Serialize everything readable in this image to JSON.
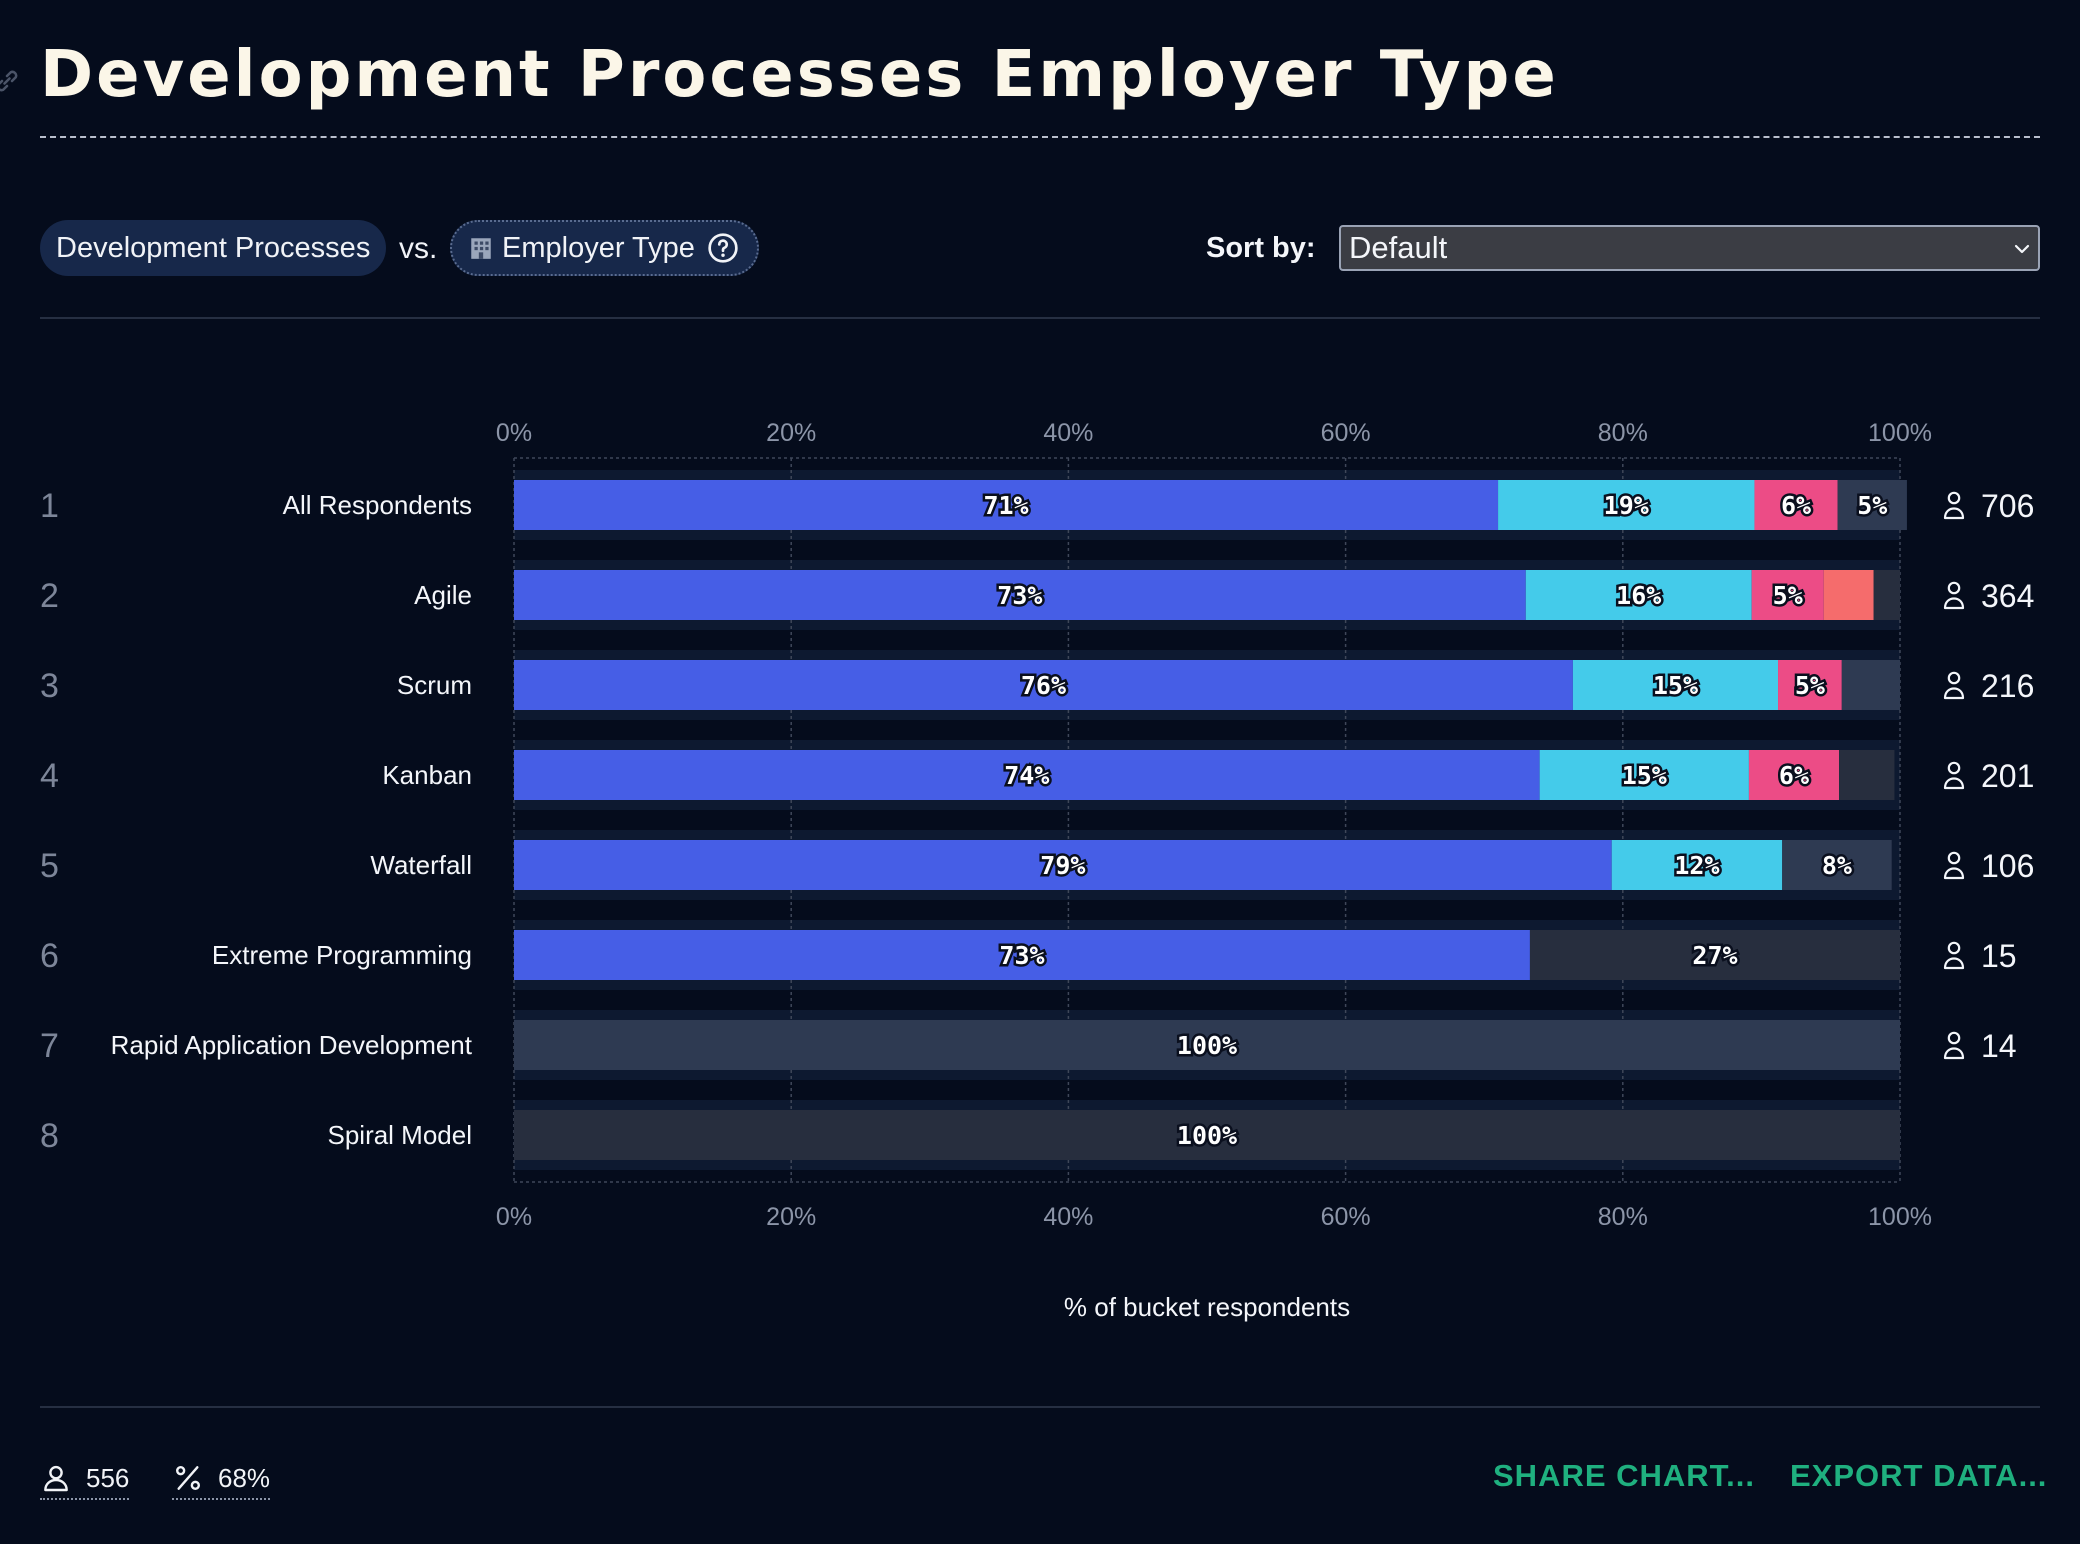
{
  "title": "Development Processes Employer Type",
  "selector": {
    "left": "Development Processes",
    "vs": "vs.",
    "right": "Employer Type",
    "right_icon": "office-building-icon",
    "help_icon": "question-circle-icon"
  },
  "sort": {
    "label": "Sort by:",
    "value": "Default"
  },
  "colors": {
    "blue": "#465ee6",
    "cyan": "#44cbea",
    "pink": "#ec4c86",
    "coral": "#f56c6c",
    "remainder": "#272e3e",
    "remainder_light": "#2e3a52",
    "band": "#0d1930",
    "accent": "#1fb07f"
  },
  "chart_data": {
    "type": "bar",
    "orientation": "horizontal",
    "stacked": true,
    "xlabel": "% of bucket respondents",
    "xlim": [
      0,
      100
    ],
    "xticks": [
      "0%",
      "20%",
      "40%",
      "60%",
      "80%",
      "100%"
    ],
    "grid": true,
    "rows": [
      {
        "rank": "1",
        "label": "All Respondents",
        "count": "706",
        "segments": [
          {
            "value": 71,
            "label": "71%",
            "color": "blue"
          },
          {
            "value": 18.5,
            "label": "19%",
            "color": "cyan"
          },
          {
            "value": 6,
            "label": "6%",
            "color": "pink"
          },
          {
            "value": 5,
            "label": "5%",
            "color": "remainder_light"
          }
        ]
      },
      {
        "rank": "2",
        "label": "Agile",
        "count": "364",
        "segments": [
          {
            "value": 73,
            "label": "73%",
            "color": "blue"
          },
          {
            "value": 16.3,
            "label": "16%",
            "color": "cyan"
          },
          {
            "value": 5.2,
            "label": "5%",
            "color": "pink"
          },
          {
            "value": 3.6,
            "label": "",
            "color": "coral"
          },
          {
            "value": 1.9,
            "label": "",
            "color": "remainder"
          }
        ]
      },
      {
        "rank": "3",
        "label": "Scrum",
        "count": "216",
        "segments": [
          {
            "value": 76.4,
            "label": "76%",
            "color": "blue"
          },
          {
            "value": 14.8,
            "label": "15%",
            "color": "cyan"
          },
          {
            "value": 4.6,
            "label": "5%",
            "color": "pink"
          },
          {
            "value": 4.2,
            "label": "",
            "color": "remainder_light"
          }
        ]
      },
      {
        "rank": "4",
        "label": "Kanban",
        "count": "201",
        "segments": [
          {
            "value": 74,
            "label": "74%",
            "color": "blue"
          },
          {
            "value": 15.1,
            "label": "15%",
            "color": "cyan"
          },
          {
            "value": 6.5,
            "label": "6%",
            "color": "pink"
          },
          {
            "value": 4,
            "label": "",
            "color": "remainder"
          }
        ]
      },
      {
        "rank": "5",
        "label": "Waterfall",
        "count": "106",
        "segments": [
          {
            "value": 79.2,
            "label": "79%",
            "color": "blue"
          },
          {
            "value": 12.3,
            "label": "12%",
            "color": "cyan"
          },
          {
            "value": 7.9,
            "label": "8%",
            "color": "remainder_light"
          }
        ]
      },
      {
        "rank": "6",
        "label": "Extreme Programming",
        "count": "15",
        "segments": [
          {
            "value": 73.3,
            "label": "73%",
            "color": "blue"
          },
          {
            "value": 26.7,
            "label": "27%",
            "color": "remainder"
          }
        ]
      },
      {
        "rank": "7",
        "label": "Rapid Application Development",
        "count": "14",
        "segments": [
          {
            "value": 100,
            "label": "100%",
            "color": "remainder_light"
          }
        ]
      },
      {
        "rank": "8",
        "label": "Spiral Model",
        "count": "",
        "segments": [
          {
            "value": 100,
            "label": "100%",
            "color": "remainder"
          }
        ]
      }
    ]
  },
  "footer": {
    "respondents": "556",
    "respondents_icon": "person-icon",
    "percent": "68%",
    "percent_icon": "percent-icon",
    "share": "SHARE CHART...",
    "export": "EXPORT DATA..."
  }
}
